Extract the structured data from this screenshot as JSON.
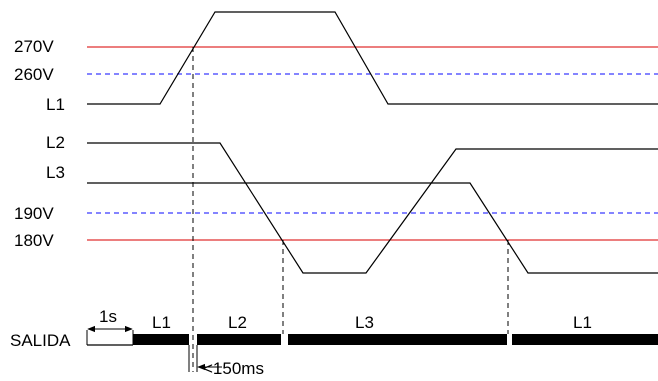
{
  "thresholds": {
    "v270": "270V",
    "v260": "260V",
    "v190": "190V",
    "v180": "180V"
  },
  "signals": {
    "l1": "L1",
    "l2": "L2",
    "l3": "L3"
  },
  "output": {
    "label": "SALIDA",
    "segments": [
      "L1",
      "L2",
      "L3",
      "L1"
    ],
    "delay_label": "1s",
    "switch_label": "<150ms"
  },
  "colors": {
    "limit_line": "#e03030",
    "hysteresis_line": "#3a3aff",
    "trace": "#000000"
  }
}
